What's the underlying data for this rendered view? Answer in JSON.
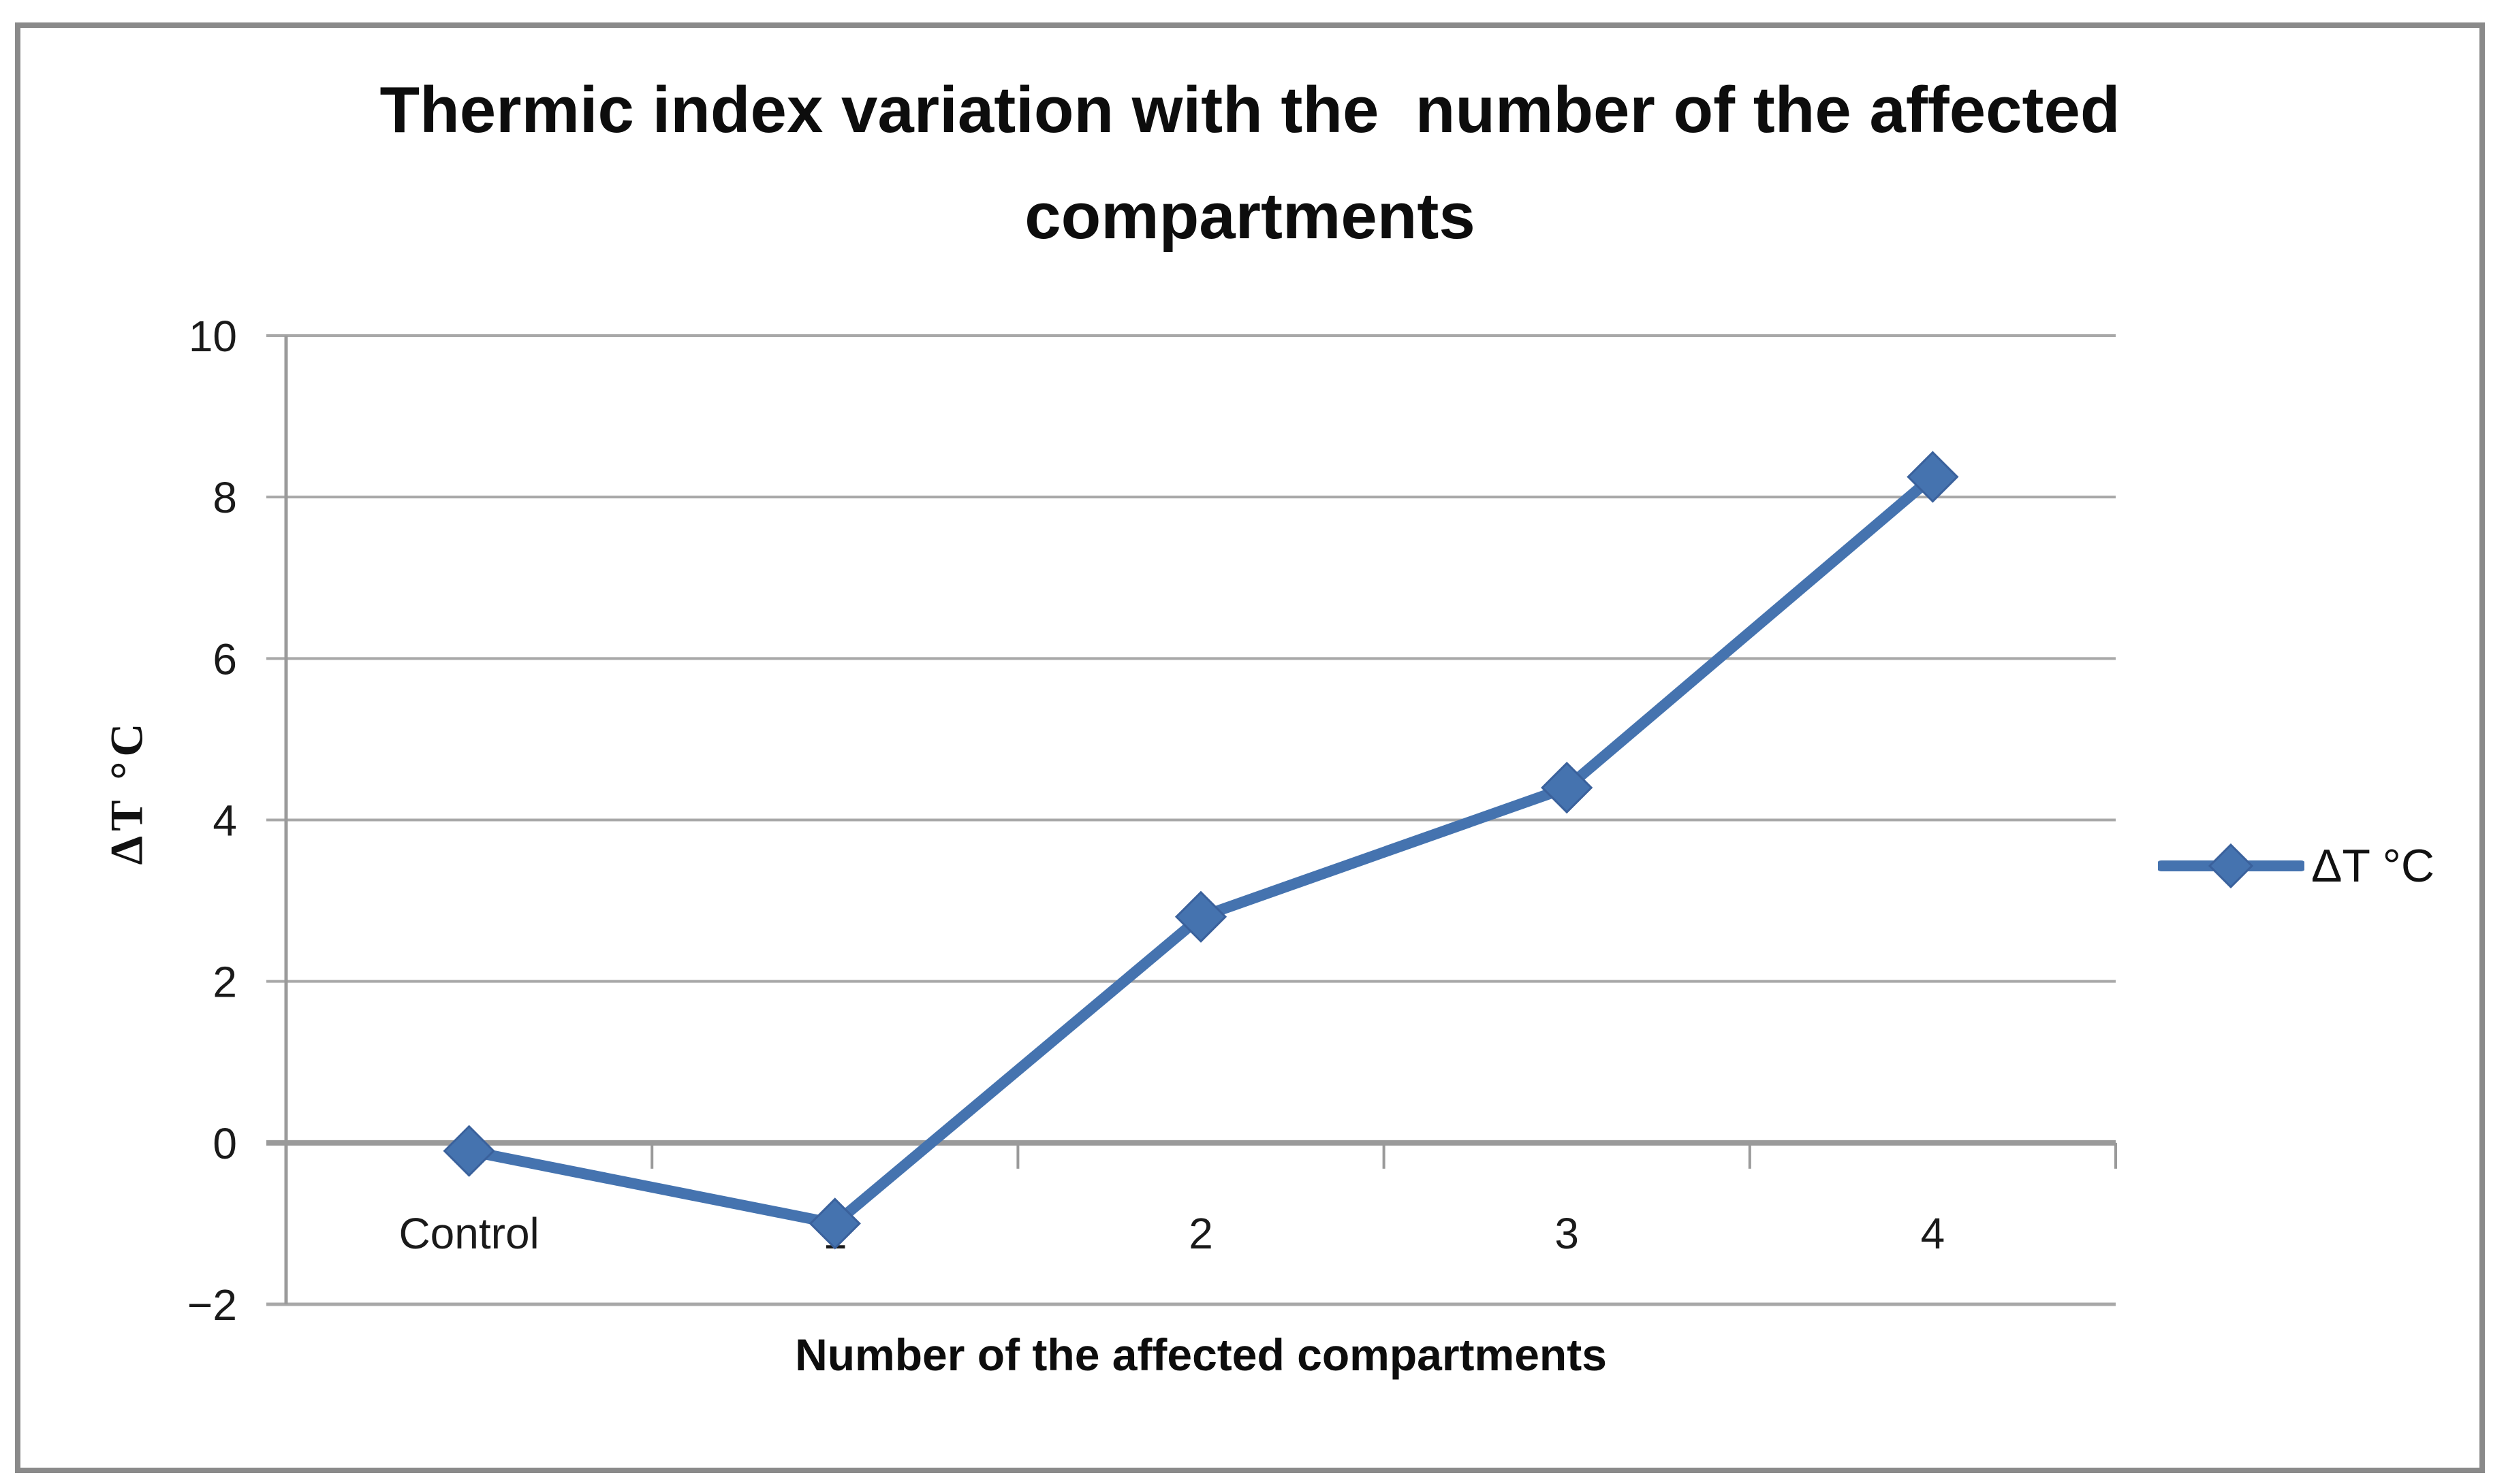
{
  "figure": {
    "title": "Thermic index variation with the  number of the affected compartments",
    "x_axis_title": "Number of the affected compartments",
    "y_axis_title": "ΔT °C",
    "legend_label": "ΔT °C"
  },
  "chart_data": {
    "type": "line",
    "title": "Thermic index variation with the  number of the affected compartments",
    "categories": [
      "Control",
      "1",
      "2",
      "3",
      "4"
    ],
    "series": [
      {
        "name": "ΔT °C",
        "values": [
          -0.1,
          -1.0,
          2.8,
          4.4,
          8.25
        ],
        "marker": "diamond",
        "color": "#4573af"
      }
    ],
    "xlabel": "Number of the affected compartments",
    "ylabel": "ΔT °C",
    "ylim": [
      -2,
      10
    ],
    "yticks": [
      10,
      8,
      6,
      4,
      2,
      0,
      -2
    ],
    "ytick_labels": [
      "10",
      "8",
      "6",
      "4",
      "2",
      "0",
      "−2"
    ],
    "grid": true,
    "legend": {
      "position": "right",
      "entries": [
        "ΔT °C"
      ]
    },
    "colors": {
      "series": "#4573af",
      "marker_edge": "#3a619c",
      "gridline": "#a8a8a8",
      "axis": "#9a9a9a",
      "text": "#1a1a1a",
      "frame_border": "#8a8a8a",
      "background": "#ffffff"
    }
  }
}
